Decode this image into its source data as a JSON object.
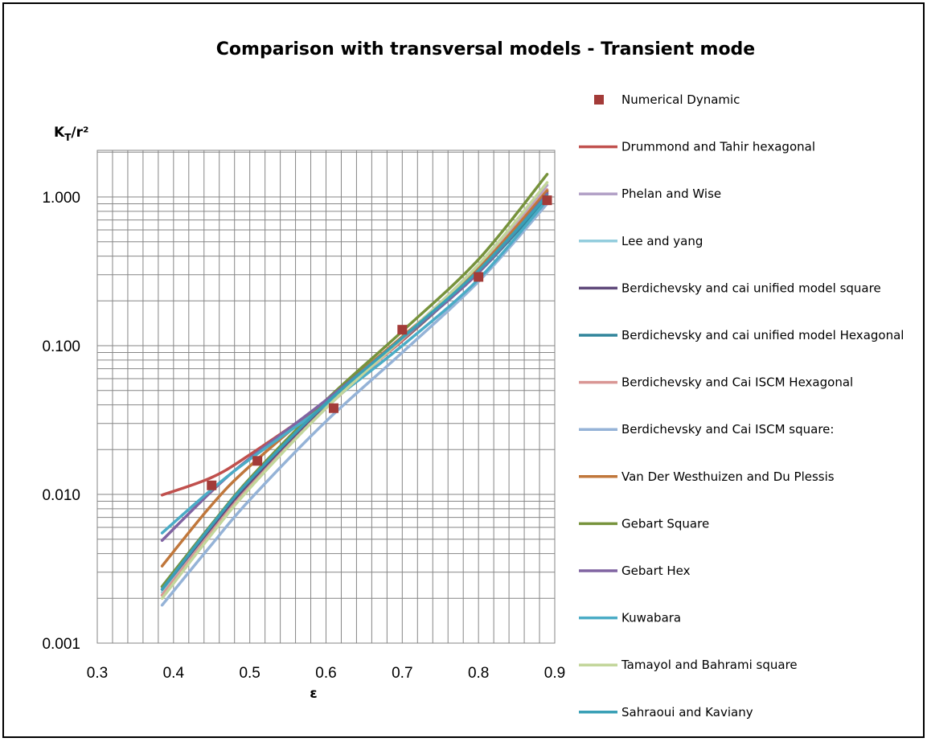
{
  "chart_data": {
    "type": "line",
    "title": "Comparison with transversal models - Transient mode",
    "xlabel": "ε",
    "ylabel": {
      "main": "K",
      "sub": "T",
      "rest": "/r²"
    },
    "xlim": [
      0.3,
      0.9
    ],
    "ylim": [
      0.001,
      2.0
    ],
    "yscale": "log",
    "x_ticks": [
      0.3,
      0.4,
      0.5,
      0.6,
      0.7,
      0.8,
      0.9
    ],
    "x_tick_labels": [
      "0.3",
      "0.4",
      "0.5",
      "0.6",
      "0.7",
      "0.8",
      "0.9"
    ],
    "y_ticks": [
      0.001,
      0.01,
      0.1,
      1.0
    ],
    "y_tick_labels": [
      "0.001",
      "0.010",
      "0.100",
      "1.000"
    ],
    "grid": true,
    "legend_position": "right",
    "series": [
      {
        "name": "Numerical Dynamic",
        "kind": "marker",
        "color": "#a33b38",
        "points": [
          [
            0.45,
            0.0115
          ],
          [
            0.51,
            0.0168
          ],
          [
            0.61,
            0.038
          ],
          [
            0.7,
            0.128
          ],
          [
            0.8,
            0.29
          ],
          [
            0.89,
            0.95
          ]
        ]
      },
      {
        "name": "Drummond and Tahir hexagonal",
        "kind": "line",
        "color": "#c0504d",
        "points": [
          [
            0.385,
            0.0099
          ],
          [
            0.45,
            0.013
          ],
          [
            0.5,
            0.0185
          ],
          [
            0.6,
            0.042
          ],
          [
            0.7,
            0.108
          ],
          [
            0.8,
            0.32
          ],
          [
            0.89,
            1.05
          ]
        ]
      },
      {
        "name": "Phelan and Wise",
        "kind": "line",
        "color": "#b3a2c7",
        "points": [
          [
            0.385,
            0.0021
          ],
          [
            0.45,
            0.0055
          ],
          [
            0.5,
            0.0112
          ],
          [
            0.6,
            0.038
          ],
          [
            0.7,
            0.112
          ],
          [
            0.8,
            0.35
          ],
          [
            0.89,
            1.2
          ]
        ]
      },
      {
        "name": "Lee and yang",
        "kind": "line",
        "color": "#93cddd",
        "points": [
          [
            0.385,
            0.0022
          ],
          [
            0.45,
            0.0058
          ],
          [
            0.5,
            0.0116
          ],
          [
            0.6,
            0.039
          ],
          [
            0.7,
            0.112
          ],
          [
            0.8,
            0.33
          ],
          [
            0.89,
            1.1
          ]
        ]
      },
      {
        "name": "Berdichevsky and cai unified model square",
        "kind": "line",
        "color": "#604a7b",
        "points": [
          [
            0.385,
            0.0023
          ],
          [
            0.45,
            0.006
          ],
          [
            0.5,
            0.012
          ],
          [
            0.6,
            0.04
          ],
          [
            0.7,
            0.113
          ],
          [
            0.8,
            0.33
          ],
          [
            0.89,
            1.08
          ]
        ]
      },
      {
        "name": "Berdichevsky and cai unified model Hexagonal",
        "kind": "line",
        "color": "#31859b",
        "points": [
          [
            0.385,
            0.0024
          ],
          [
            0.45,
            0.0063
          ],
          [
            0.5,
            0.0125
          ],
          [
            0.6,
            0.041
          ],
          [
            0.7,
            0.11
          ],
          [
            0.8,
            0.31
          ],
          [
            0.89,
            0.98
          ]
        ]
      },
      {
        "name": "Berdichevsky and Cai ISCM Hexagonal",
        "kind": "line",
        "color": "#d99694",
        "points": [
          [
            0.385,
            0.0021
          ],
          [
            0.45,
            0.0056
          ],
          [
            0.5,
            0.0113
          ],
          [
            0.6,
            0.038
          ],
          [
            0.7,
            0.11
          ],
          [
            0.8,
            0.33
          ],
          [
            0.89,
            1.12
          ]
        ]
      },
      {
        "name": "Berdichevsky and Cai ISCM square:",
        "kind": "line",
        "color": "#95b3d7",
        "points": [
          [
            0.385,
            0.0018
          ],
          [
            0.45,
            0.0046
          ],
          [
            0.5,
            0.0092
          ],
          [
            0.6,
            0.031
          ],
          [
            0.7,
            0.09
          ],
          [
            0.8,
            0.27
          ],
          [
            0.89,
            0.9
          ]
        ]
      },
      {
        "name": "Van Der Westhuizen  and Du Plessis",
        "kind": "line",
        "color": "#c0773b",
        "points": [
          [
            0.385,
            0.0033
          ],
          [
            0.45,
            0.0085
          ],
          [
            0.5,
            0.0155
          ],
          [
            0.6,
            0.043
          ],
          [
            0.7,
            0.115
          ],
          [
            0.8,
            0.33
          ],
          [
            0.89,
            1.1
          ]
        ]
      },
      {
        "name": "Gebart Square",
        "kind": "line",
        "color": "#77933c",
        "points": [
          [
            0.385,
            0.0024
          ],
          [
            0.45,
            0.0063
          ],
          [
            0.5,
            0.0128
          ],
          [
            0.6,
            0.043
          ],
          [
            0.7,
            0.125
          ],
          [
            0.8,
            0.38
          ],
          [
            0.89,
            1.42
          ]
        ]
      },
      {
        "name": "Gebart Hex",
        "kind": "line",
        "color": "#8064a2",
        "points": [
          [
            0.385,
            0.0049
          ],
          [
            0.45,
            0.0105
          ],
          [
            0.5,
            0.0175
          ],
          [
            0.6,
            0.043
          ],
          [
            0.7,
            0.112
          ],
          [
            0.8,
            0.31
          ],
          [
            0.89,
            1.05
          ]
        ]
      },
      {
        "name": "Kuwabara",
        "kind": "line",
        "color": "#4bacc6",
        "points": [
          [
            0.385,
            0.0055
          ],
          [
            0.45,
            0.0108
          ],
          [
            0.5,
            0.0172
          ],
          [
            0.6,
            0.04
          ],
          [
            0.7,
            0.1
          ],
          [
            0.8,
            0.28
          ],
          [
            0.89,
            0.95
          ]
        ]
      },
      {
        "name": "Tamayol and Bahrami square",
        "kind": "line",
        "color": "#c3d69b",
        "points": [
          [
            0.385,
            0.002
          ],
          [
            0.45,
            0.0054
          ],
          [
            0.5,
            0.011
          ],
          [
            0.6,
            0.038
          ],
          [
            0.7,
            0.112
          ],
          [
            0.8,
            0.35
          ],
          [
            0.89,
            1.25
          ]
        ]
      },
      {
        "name": "Sahraoui and Kaviany",
        "kind": "line",
        "color": "#3aa0b6",
        "points": [
          [
            0.385,
            0.0023
          ],
          [
            0.45,
            0.0062
          ],
          [
            0.5,
            0.0125
          ],
          [
            0.6,
            0.041
          ],
          [
            0.7,
            0.113
          ],
          [
            0.8,
            0.32
          ],
          [
            0.89,
            1.02
          ]
        ]
      }
    ]
  }
}
